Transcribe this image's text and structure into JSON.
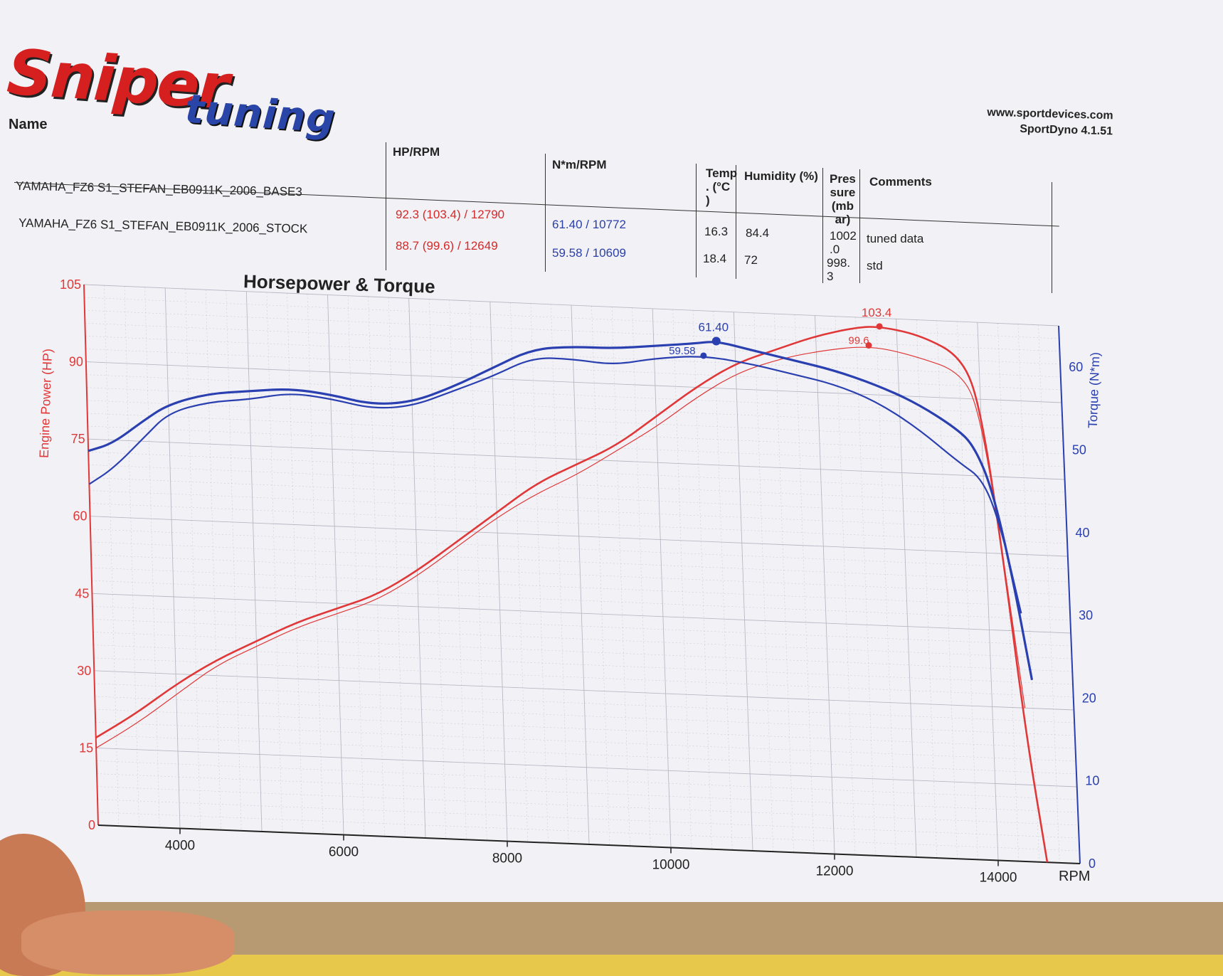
{
  "header": {
    "logo_main": "Sniper",
    "logo_sub": "tuning",
    "name_label": "Name",
    "website": "www.sportdevices.com",
    "software": "SportDyno 4.1.51"
  },
  "table": {
    "headers": {
      "hp": "HP/RPM",
      "nm": "N*m/RPM",
      "temp": [
        "Temp",
        ". (°C",
        ")"
      ],
      "humidity": "Humidity (%)",
      "pressure": [
        "Pres",
        "sure",
        "(mb",
        "ar)"
      ],
      "comments": "Comments"
    },
    "rows": [
      {
        "name": "YAMAHA_FZ6 S1_STEFAN_EB0911K_2006_BASE3",
        "hp": "92.3 (103.4) / 12790",
        "nm": "61.40 / 10772",
        "temp": "16.3",
        "humidity": "84.4",
        "pressure": [
          "1002",
          ".0"
        ],
        "comment": "tuned data"
      },
      {
        "name": "YAMAHA_FZ6 S1_STEFAN_EB0911K_2006_STOCK",
        "hp": "88.7 (99.6) / 12649",
        "nm": "59.58 / 10609",
        "temp": "18.4",
        "humidity": "72",
        "pressure": [
          "998.",
          "3"
        ],
        "comment": "std"
      }
    ]
  },
  "colors": {
    "power": "#e03838",
    "torque": "#2a3fb0",
    "grid": "#b8b8c4"
  },
  "chart_data": {
    "type": "line",
    "title": "Horsepower & Torque",
    "xlabel": "RPM",
    "ylabel": "Engine Power (HP)",
    "y2label": "Torque (N*m)",
    "xlim": [
      3000,
      15000
    ],
    "ylim": [
      0,
      105
    ],
    "y2lim": [
      0,
      65
    ],
    "x_ticks": [
      4000,
      6000,
      8000,
      10000,
      12000,
      14000
    ],
    "y_ticks": [
      0,
      15,
      30,
      45,
      60,
      75,
      90,
      105
    ],
    "y2_ticks": [
      0,
      10,
      20,
      30,
      40,
      50,
      60
    ],
    "grid": true,
    "series": [
      {
        "name": "BASE3 power",
        "axis": "left",
        "color": "#e03838",
        "width": 2.6,
        "x": [
          3000,
          3500,
          4000,
          4500,
          5000,
          5500,
          6000,
          6500,
          7000,
          7500,
          8000,
          8500,
          9000,
          9500,
          10000,
          10500,
          11000,
          11500,
          12000,
          12500,
          12790,
          13300,
          13800,
          14000,
          14200,
          14400,
          14600
        ],
        "y": [
          17,
          22,
          28,
          33,
          37,
          41,
          44,
          47,
          52,
          58,
          64,
          70,
          74,
          78,
          84,
          90,
          95,
          98,
          101,
          103,
          103.4,
          102,
          98,
          88,
          60,
          25,
          0
        ]
      },
      {
        "name": "STOCK power",
        "axis": "left",
        "color": "#e03838",
        "width": 1.2,
        "x": [
          3000,
          3500,
          4000,
          4500,
          5000,
          5500,
          6000,
          6500,
          7000,
          7500,
          8000,
          8500,
          9000,
          9500,
          10000,
          10500,
          11000,
          11500,
          12000,
          12649,
          13200,
          13800,
          14000,
          14200,
          14400
        ],
        "y": [
          15,
          20,
          26,
          32,
          36,
          40,
          43,
          46,
          51,
          57,
          63,
          68,
          72,
          77,
          82,
          88,
          93,
          96,
          98,
          99.6,
          98,
          95,
          86,
          60,
          30
        ]
      },
      {
        "name": "BASE3 torque",
        "axis": "right",
        "color": "#2a3fb0",
        "width": 3.2,
        "x": [
          3000,
          3300,
          3700,
          4000,
          4500,
          5000,
          5500,
          6000,
          6500,
          7000,
          7500,
          8000,
          8500,
          9000,
          9500,
          10000,
          10500,
          10772,
          11200,
          11700,
          12200,
          12700,
          13200,
          13700,
          13900,
          14100,
          14300,
          14500
        ],
        "y": [
          45,
          46,
          49,
          51,
          52.5,
          53,
          53.5,
          53,
          52,
          52.5,
          54.5,
          57,
          59.5,
          60,
          60,
          60.5,
          61,
          61.4,
          60.5,
          59.5,
          58.5,
          57,
          55,
          52,
          50,
          45,
          35,
          22
        ]
      },
      {
        "name": "STOCK torque",
        "axis": "right",
        "color": "#2a3fb0",
        "width": 2.2,
        "x": [
          3000,
          3300,
          3700,
          4000,
          4500,
          5000,
          5500,
          6000,
          6500,
          7000,
          7500,
          8000,
          8500,
          9000,
          9500,
          10000,
          10609,
          11200,
          11700,
          12200,
          12700,
          13200,
          13700,
          14000,
          14200,
          14400
        ],
        "y": [
          41,
          43,
          47,
          50,
          51.5,
          52,
          53,
          52.5,
          51.5,
          52,
          54,
          56,
          58.5,
          58.5,
          58,
          59,
          59.58,
          58.8,
          57.8,
          56.8,
          55,
          52,
          48,
          46,
          40,
          30
        ]
      }
    ],
    "annotations": [
      {
        "text": "61.40",
        "series": 2,
        "x": 10772,
        "y": 61.4
      },
      {
        "text": "59.58",
        "series": 3,
        "x": 10609,
        "y": 59.58
      },
      {
        "text": "103.4",
        "series": 0,
        "x": 12790,
        "y": 103.4
      },
      {
        "text": "99.6",
        "series": 1,
        "x": 12649,
        "y": 99.6
      }
    ]
  }
}
